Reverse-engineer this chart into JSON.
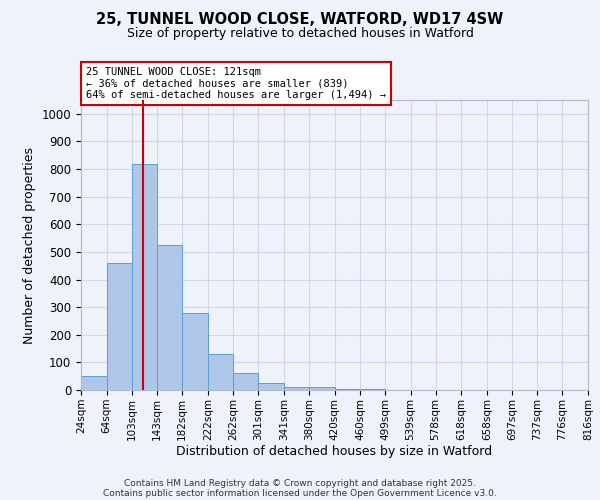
{
  "title1": "25, TUNNEL WOOD CLOSE, WATFORD, WD17 4SW",
  "title2": "Size of property relative to detached houses in Watford",
  "xlabel": "Distribution of detached houses by size in Watford",
  "ylabel": "Number of detached properties",
  "bins": [
    "24sqm",
    "64sqm",
    "103sqm",
    "143sqm",
    "182sqm",
    "222sqm",
    "262sqm",
    "301sqm",
    "341sqm",
    "380sqm",
    "420sqm",
    "460sqm",
    "499sqm",
    "539sqm",
    "578sqm",
    "618sqm",
    "658sqm",
    "697sqm",
    "737sqm",
    "776sqm",
    "816sqm"
  ],
  "bin_edges": [
    24,
    64,
    103,
    143,
    182,
    222,
    262,
    301,
    341,
    380,
    420,
    460,
    499,
    539,
    578,
    618,
    658,
    697,
    737,
    776,
    816
  ],
  "bar_heights": [
    50,
    460,
    820,
    525,
    280,
    130,
    60,
    25,
    10,
    10,
    5,
    5,
    0,
    0,
    0,
    0,
    0,
    0,
    0,
    0
  ],
  "bar_color": "#aec6e8",
  "bar_edgecolor": "#5a9fd4",
  "grid_color": "#d0d8e8",
  "property_size": 121,
  "red_line_color": "#cc0000",
  "annotation_line1": "25 TUNNEL WOOD CLOSE: 121sqm",
  "annotation_line2": "← 36% of detached houses are smaller (839)",
  "annotation_line3": "64% of semi-detached houses are larger (1,494) →",
  "annotation_box_color": "#cc0000",
  "ylim": [
    0,
    1050
  ],
  "yticks": [
    0,
    100,
    200,
    300,
    400,
    500,
    600,
    700,
    800,
    900,
    1000
  ],
  "footer1": "Contains HM Land Registry data © Crown copyright and database right 2025.",
  "footer2": "Contains public sector information licensed under the Open Government Licence v3.0.",
  "bg_color": "#eef2fa"
}
